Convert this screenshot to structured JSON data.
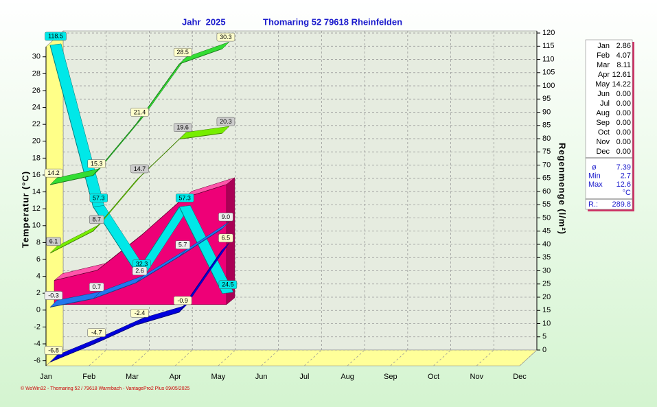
{
  "chart_data": {
    "type": "line",
    "title": "Jahr  2025",
    "subtitle": "Thomaring 52 79618 Rheinfelden",
    "ylabel": "Temperatur (°C)",
    "y2label": "Regenmenge (l/m²)",
    "footer": "© WsWin32 - Thomaring 52 / 79618 Warmbach - VantagePro2 Plus  09/05/2025",
    "categories": [
      "Jan",
      "Feb",
      "Mar",
      "Apr",
      "May",
      "Jun",
      "Jul",
      "Aug",
      "Sep",
      "Oct",
      "Nov",
      "Dec"
    ],
    "ylim": [
      -6.6,
      31.2
    ],
    "yticks": [
      -6,
      -4,
      -2,
      0,
      2,
      4,
      6,
      8,
      10,
      12,
      14,
      16,
      18,
      20,
      22,
      24,
      26,
      28,
      30
    ],
    "y2lim": [
      0,
      120.8
    ],
    "y2ticks": [
      0,
      5,
      10,
      15,
      20,
      25,
      30,
      35,
      40,
      45,
      50,
      55,
      60,
      65,
      70,
      75,
      80,
      85,
      90,
      95,
      100,
      105,
      110,
      115,
      120
    ],
    "grid": true,
    "area": {
      "color": "#ee0077",
      "values": [
        2.86,
        4.07,
        8.11,
        12.61,
        14.22,
        null,
        null,
        null,
        null,
        null,
        null,
        null
      ]
    },
    "series": [
      {
        "color": "#00e8e8",
        "label_color": "#00e8e8",
        "axis": "y2",
        "values": [
          118.5,
          57.3,
          32.3,
          57.3,
          24.5,
          null,
          null,
          null,
          null,
          null,
          null,
          null
        ],
        "value_labels": [
          "118.5",
          "57.3",
          "32.3",
          "57.3",
          "24.5",
          null,
          null,
          null,
          null,
          null,
          null,
          null
        ]
      },
      {
        "color": "#33dd33",
        "label_color": "#ffffcc",
        "values": [
          14.2,
          15.3,
          21.4,
          28.5,
          30.3,
          null,
          null,
          null,
          null,
          null,
          null,
          null
        ],
        "value_labels": [
          "14.2",
          "15.3",
          "21.4",
          "28.5",
          "30.3",
          null,
          null,
          null,
          null,
          null,
          null,
          null
        ]
      },
      {
        "color": "#77ee00",
        "label_color": "#cccccc",
        "values": [
          6.1,
          8.7,
          14.7,
          19.6,
          20.3,
          null,
          null,
          null,
          null,
          null,
          null,
          null
        ],
        "value_labels": [
          "6.1",
          "8.7",
          "14.7",
          "19.6",
          "20.3",
          null,
          null,
          null,
          null,
          null,
          null,
          null
        ]
      },
      {
        "color": "#2277ee",
        "label_color": "#eeeeee",
        "values": [
          -0.3,
          0.7,
          2.6,
          5.7,
          9.0,
          null,
          null,
          null,
          null,
          null,
          null,
          null
        ],
        "value_labels": [
          "-0.3",
          "0.7",
          "2.6",
          "5.7",
          "9.0",
          null,
          null,
          null,
          null,
          null,
          null,
          null
        ]
      },
      {
        "color": "#0000dd",
        "label_color": "#ffffcc",
        "values": [
          -6.8,
          -4.7,
          -2.4,
          -0.9,
          6.5,
          null,
          null,
          null,
          null,
          null,
          null,
          null
        ],
        "value_labels": [
          "-6.8",
          "-4.7",
          "-2.4",
          "-0.9",
          "6.5",
          null,
          null,
          null,
          null,
          null,
          null,
          null
        ]
      }
    ]
  },
  "summary": {
    "rows": [
      [
        "Jan",
        "2.86"
      ],
      [
        "Feb",
        "4.07"
      ],
      [
        "Mar",
        "8.11"
      ],
      [
        "Apr",
        "12.61"
      ],
      [
        "May",
        "14.22"
      ],
      [
        "Jun",
        "0.00"
      ],
      [
        "Jul",
        "0.00"
      ],
      [
        "Aug",
        "0.00"
      ],
      [
        "Sep",
        "0.00"
      ],
      [
        "Oct",
        "0.00"
      ],
      [
        "Nov",
        "0.00"
      ],
      [
        "Dec",
        "0.00"
      ]
    ],
    "stats": [
      [
        "ø",
        "7.39"
      ],
      [
        "Min",
        "2.7"
      ],
      [
        "Max",
        "12.6"
      ]
    ],
    "unit": "°C",
    "total": [
      "R.:",
      "289.8"
    ]
  }
}
